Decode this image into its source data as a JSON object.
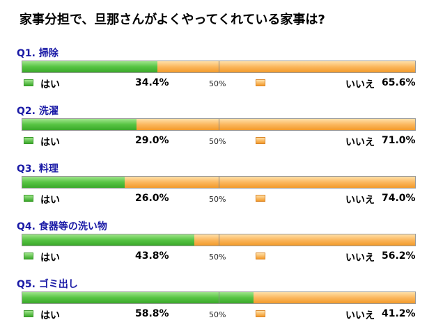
{
  "title": "家事分担で、旦那さんがよくやってくれている家事は?",
  "legend": {
    "yes": "はい",
    "no": "いいえ",
    "midpoint": "50%"
  },
  "colors": {
    "yes": "#57c443",
    "no": "#fbb75e",
    "question": "#1a1aa6"
  },
  "chart_data": {
    "type": "bar",
    "orientation": "horizontal-stacked-100",
    "title": "家事分担で、旦那さんがよくやってくれている家事は?",
    "categories": [
      "Q1. 掃除",
      "Q2. 洗濯",
      "Q3. 料理",
      "Q4. 食器等の洗い物",
      "Q5. ゴミ出し"
    ],
    "series": [
      {
        "name": "はい",
        "values": [
          34.4,
          29.0,
          26.0,
          43.8,
          58.8
        ],
        "labels": [
          "34.4%",
          "29.0%",
          "26.0%",
          "43.8%",
          "58.8%"
        ]
      },
      {
        "name": "いいえ",
        "values": [
          65.6,
          71.0,
          74.0,
          56.2,
          41.2
        ],
        "labels": [
          "65.6%",
          "71.0%",
          "74.0%",
          "56.2%",
          "41.2%"
        ]
      }
    ],
    "xlim": [
      0,
      100
    ]
  }
}
